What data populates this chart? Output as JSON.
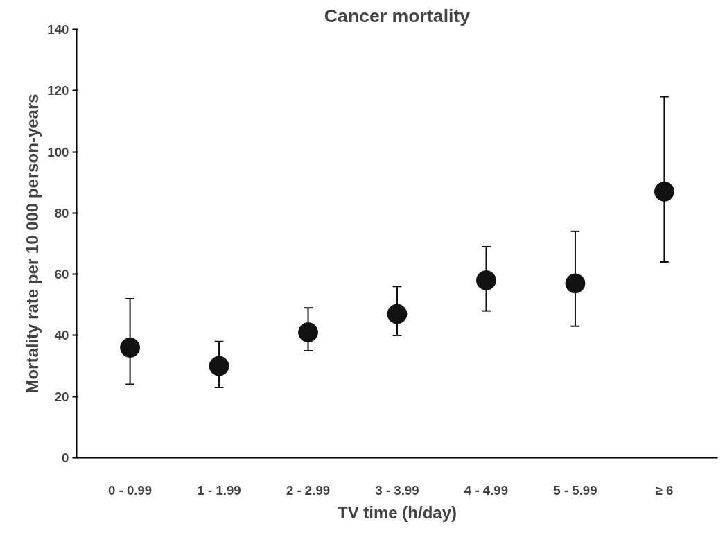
{
  "chart_data": {
    "type": "scatter",
    "title": "Cancer mortality",
    "xlabel": "TV time (h/day)",
    "ylabel": "Mortality rate per 10 000 person-years",
    "categories": [
      "0 - 0.99",
      "1 - 1.99",
      "2 - 2.99",
      "3 - 3.99",
      "4 - 4.99",
      "5 - 5.99",
      "≥ 6"
    ],
    "series": [
      {
        "color": "#111111",
        "values": [
          36,
          30,
          41,
          47,
          58,
          57,
          87
        ],
        "errors": [
          [
            24,
            52
          ],
          [
            23,
            38
          ],
          [
            35,
            49
          ],
          [
            40,
            56
          ],
          [
            48,
            69
          ],
          [
            43,
            74
          ],
          [
            64,
            118
          ]
        ]
      }
    ],
    "ylim": [
      0,
      140
    ],
    "yticks": [
      0,
      20,
      40,
      60,
      80,
      100,
      120,
      140
    ],
    "marker": "circle"
  }
}
